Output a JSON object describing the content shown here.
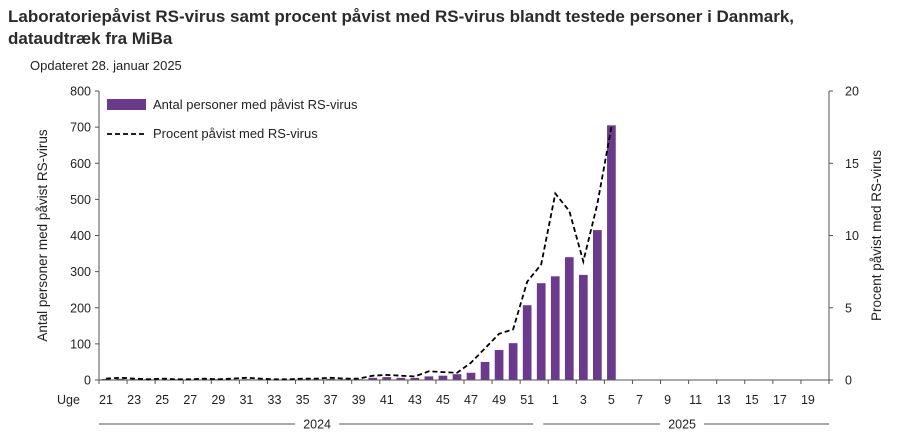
{
  "title": "Laboratoriepåvist RS-virus samt procent påvist med RS-virus blandt testede  personer i Danmark, dataudtræk fra MiBa",
  "subtitle": "Opdateret 28. januar 2025",
  "chart_data": {
    "type": "bar",
    "x_prefix_label": "Uge",
    "weeks": [
      21,
      22,
      23,
      24,
      25,
      26,
      27,
      28,
      29,
      30,
      31,
      32,
      33,
      34,
      35,
      36,
      37,
      38,
      39,
      40,
      41,
      42,
      43,
      44,
      45,
      46,
      47,
      48,
      49,
      50,
      51,
      52,
      1,
      2,
      3,
      4,
      5,
      6,
      7,
      8,
      9,
      10,
      11,
      12,
      13,
      14,
      15,
      16,
      17,
      18,
      19,
      20
    ],
    "x_tick_labels": [
      "21",
      "23",
      "25",
      "27",
      "29",
      "31",
      "33",
      "35",
      "37",
      "39",
      "41",
      "43",
      "45",
      "47",
      "49",
      "51",
      "1",
      "3",
      "5",
      "7",
      "9",
      "11",
      "13",
      "15",
      "17",
      "19"
    ],
    "year_labels": [
      "2024",
      "2025"
    ],
    "series": [
      {
        "name": "Antal personer med påvist RS-virus",
        "axis": "left",
        "color": "#6b3a8c",
        "values": [
          3,
          3,
          2,
          2,
          1,
          2,
          1,
          1,
          2,
          1,
          2,
          1,
          1,
          1,
          2,
          2,
          3,
          2,
          2,
          6,
          8,
          6,
          6,
          10,
          12,
          16,
          20,
          50,
          83,
          102,
          207,
          268,
          287,
          340,
          291,
          415,
          705,
          null,
          null,
          null,
          null,
          null,
          null,
          null,
          null,
          null,
          null,
          null,
          null,
          null,
          null,
          null
        ]
      },
      {
        "name": "Procent påvist med RS-virus",
        "axis": "right",
        "color": "#000000",
        "style": "dashed",
        "values": [
          0.1,
          0.15,
          0.1,
          0.05,
          0.1,
          0.05,
          0.05,
          0.1,
          0.05,
          0.1,
          0.15,
          0.1,
          0.05,
          0.05,
          0.1,
          0.1,
          0.15,
          0.1,
          0.1,
          0.3,
          0.35,
          0.3,
          0.25,
          0.6,
          0.55,
          0.5,
          1.2,
          2.2,
          3.2,
          3.5,
          6.8,
          8.0,
          12.9,
          11.7,
          8.2,
          12.2,
          17.5,
          null,
          null,
          null,
          null,
          null,
          null,
          null,
          null,
          null,
          null,
          null,
          null,
          null,
          null,
          null
        ]
      }
    ],
    "y_left": {
      "label": "Antal personer med påvist RS-virus",
      "min": 0,
      "max": 800,
      "ticks": [
        0,
        100,
        200,
        300,
        400,
        500,
        600,
        700,
        800
      ]
    },
    "y_right": {
      "label": "Procent påvist med RS-virus",
      "min": 0,
      "max": 20,
      "ticks": [
        0,
        5,
        10,
        15,
        20
      ]
    },
    "legend": "top-left",
    "grid": false
  }
}
